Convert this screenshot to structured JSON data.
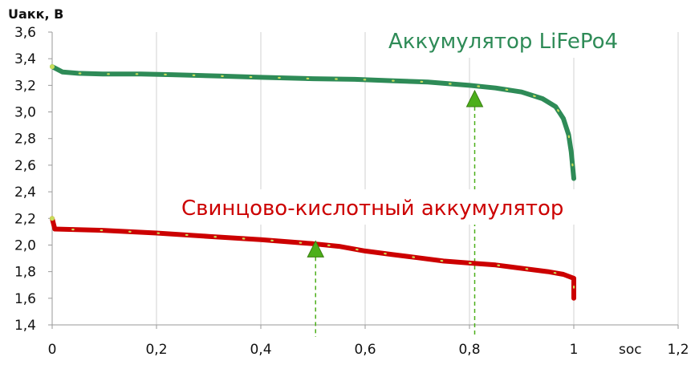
{
  "chart_data": {
    "type": "line",
    "ylabel": "Uакк, B",
    "xlabel": "soc",
    "xlim": [
      0,
      1.2
    ],
    "ylim": [
      1.4,
      3.6
    ],
    "x_ticks": [
      "0",
      "0,2",
      "0,4",
      "0,6",
      "0,8",
      "1",
      "1,2"
    ],
    "y_ticks": [
      "1,4",
      "1,6",
      "1,8",
      "2,0",
      "2,2",
      "2,4",
      "2,6",
      "2,8",
      "3,0",
      "3,2",
      "3,4",
      "3,6"
    ],
    "grid": "vertical",
    "series": [
      {
        "name": "Аккумулятор LiFePo4",
        "color": "#2e8b57",
        "points": [
          [
            0,
            3.34
          ],
          [
            0.02,
            3.3
          ],
          [
            0.05,
            3.29
          ],
          [
            0.1,
            3.285
          ],
          [
            0.17,
            3.285
          ],
          [
            0.23,
            3.28
          ],
          [
            0.32,
            3.27
          ],
          [
            0.4,
            3.26
          ],
          [
            0.5,
            3.25
          ],
          [
            0.58,
            3.245
          ],
          [
            0.65,
            3.235
          ],
          [
            0.72,
            3.225
          ],
          [
            0.8,
            3.2
          ],
          [
            0.85,
            3.18
          ],
          [
            0.9,
            3.15
          ],
          [
            0.94,
            3.1
          ],
          [
            0.965,
            3.04
          ],
          [
            0.98,
            2.95
          ],
          [
            0.99,
            2.83
          ],
          [
            0.995,
            2.7
          ],
          [
            1.0,
            2.5
          ]
        ]
      },
      {
        "name": "Свинцово-кислотный аккумулятор",
        "color": "#cc0000",
        "points": [
          [
            0,
            2.2
          ],
          [
            0.005,
            2.12
          ],
          [
            0.1,
            2.11
          ],
          [
            0.2,
            2.09
          ],
          [
            0.3,
            2.065
          ],
          [
            0.4,
            2.04
          ],
          [
            0.5,
            2.01
          ],
          [
            0.55,
            1.99
          ],
          [
            0.6,
            1.955
          ],
          [
            0.65,
            1.93
          ],
          [
            0.7,
            1.905
          ],
          [
            0.75,
            1.88
          ],
          [
            0.8,
            1.865
          ],
          [
            0.85,
            1.85
          ],
          [
            0.9,
            1.825
          ],
          [
            0.95,
            1.8
          ],
          [
            0.98,
            1.78
          ],
          [
            1.0,
            1.75
          ],
          [
            1.0,
            1.6
          ]
        ]
      }
    ],
    "markers": [
      {
        "x": 0.505,
        "y": 1.97,
        "color": "#4caf1a"
      },
      {
        "x": 0.81,
        "y": 3.1,
        "color": "#4caf1a"
      }
    ],
    "annotations": [
      {
        "text": "Аккумулятор LiFePo4",
        "color": "#2e8b57"
      },
      {
        "text": "Свинцово-кислотный аккумулятор",
        "color": "#cc0000"
      }
    ]
  }
}
